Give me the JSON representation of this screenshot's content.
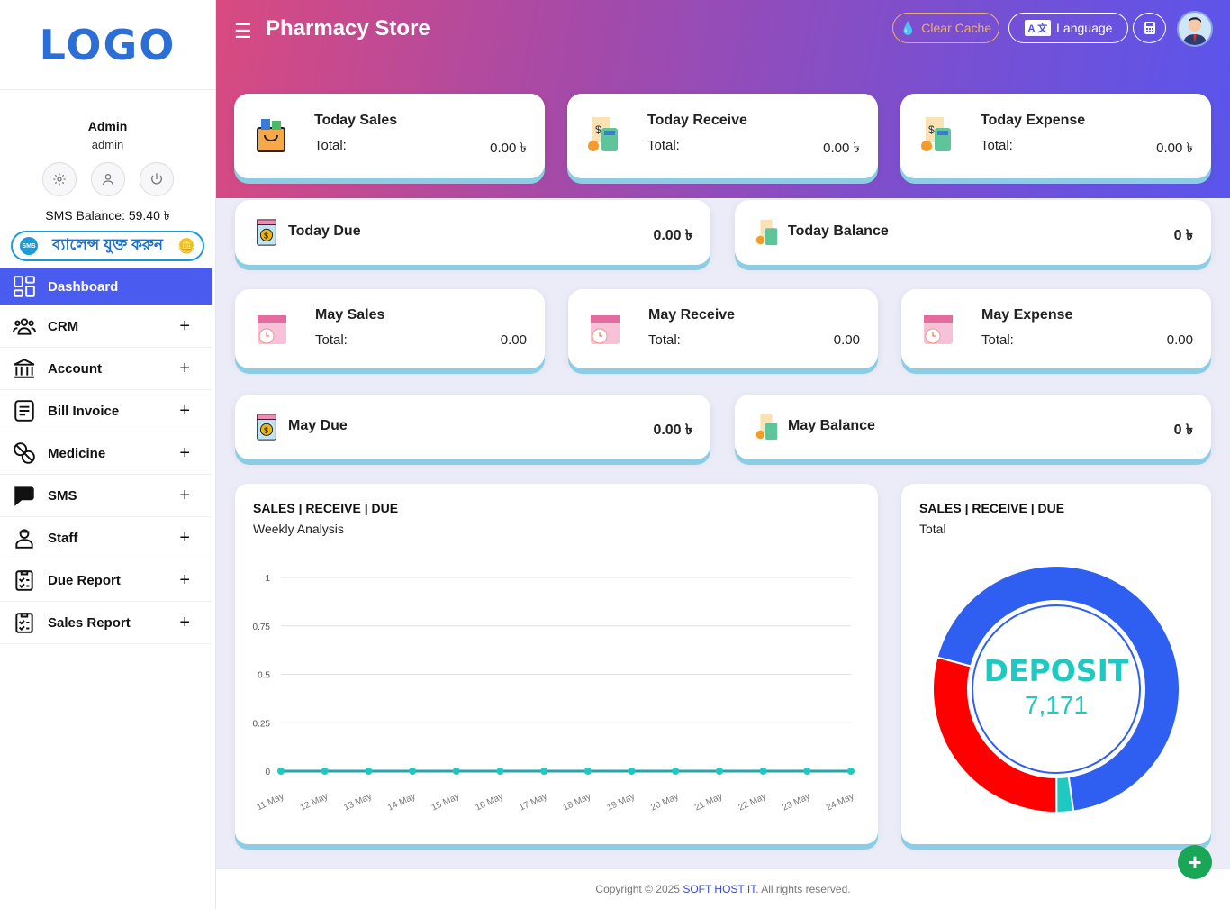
{
  "app": {
    "logo": "LOGO",
    "title": "Pharmacy Store"
  },
  "header": {
    "clear_cache": "Clear Cache",
    "language": "Language",
    "calculator_icon": "calculator-icon",
    "avatar_icon": "user-avatar"
  },
  "user": {
    "name": "Admin",
    "role": "admin",
    "sms_balance": "SMS Balance: 59.40 ৳",
    "add_balance": "ব্যালেন্স যুক্ত করুন",
    "sms_badge": "SMS"
  },
  "sidebar": {
    "items": [
      {
        "label": "Dashboard",
        "icon": "dashboard-icon",
        "active": true
      },
      {
        "label": "CRM",
        "icon": "users-icon"
      },
      {
        "label": "Account",
        "icon": "bank-icon"
      },
      {
        "label": "Bill Invoice",
        "icon": "invoice-icon"
      },
      {
        "label": "Medicine",
        "icon": "pills-icon"
      },
      {
        "label": "SMS",
        "icon": "chat-icon"
      },
      {
        "label": "Staff",
        "icon": "staff-icon"
      },
      {
        "label": "Due Report",
        "icon": "report-icon"
      },
      {
        "label": "Sales Report",
        "icon": "report-icon"
      }
    ],
    "plus": "+"
  },
  "cards": {
    "today_sales": {
      "title": "Today Sales",
      "label": "Total:",
      "value": "0.00 ৳"
    },
    "today_receive": {
      "title": "Today Receive",
      "label": "Total:",
      "value": "0.00 ৳"
    },
    "today_expense": {
      "title": "Today Expense",
      "label": "Total:",
      "value": "0.00 ৳"
    },
    "today_due": {
      "title": "Today Due",
      "value": "0.00 ৳"
    },
    "today_balance": {
      "title": "Today Balance",
      "value": "0 ৳"
    },
    "may_sales": {
      "title": "May Sales",
      "label": "Total:",
      "value": "0.00"
    },
    "may_receive": {
      "title": "May Receive",
      "label": "Total:",
      "value": "0.00"
    },
    "may_expense": {
      "title": "May Expense",
      "label": "Total:",
      "value": "0.00"
    },
    "may_due": {
      "title": "May Due",
      "value": "0.00 ৳"
    },
    "may_balance": {
      "title": "May Balance",
      "value": "0 ৳"
    }
  },
  "chart_data": [
    {
      "type": "line",
      "title": "SALES | RECEIVE | DUE",
      "subtitle": "Weekly Analysis",
      "categories": [
        "11 May",
        "12 May",
        "13 May",
        "14 May",
        "15 May",
        "16 May",
        "17 May",
        "18 May",
        "19 May",
        "20 May",
        "21 May",
        "22 May",
        "23 May",
        "24 May"
      ],
      "values": [
        0,
        0,
        0,
        0,
        0,
        0,
        0,
        0,
        0,
        0,
        0,
        0,
        0,
        0
      ],
      "ylim": [
        0,
        1
      ],
      "yticks": [
        "0",
        "0.25",
        "0.5",
        "0.75",
        "1"
      ],
      "grid": true,
      "color": "#1fc8c0"
    },
    {
      "type": "pie",
      "title": "SALES | RECEIVE | DUE",
      "subtitle": "Total",
      "center_label": "DEPOSIT",
      "center_value": "7,171",
      "values_percent": [
        68.6,
        2.2,
        29.2
      ],
      "colors": [
        "#2f5ff0",
        "#1fc8c0",
        "#ff0000"
      ]
    }
  ],
  "footer": {
    "prefix": "Copyright © 2025 ",
    "company": "SOFT HOST IT",
    "suffix": ". All rights reserved."
  },
  "fab": "+"
}
